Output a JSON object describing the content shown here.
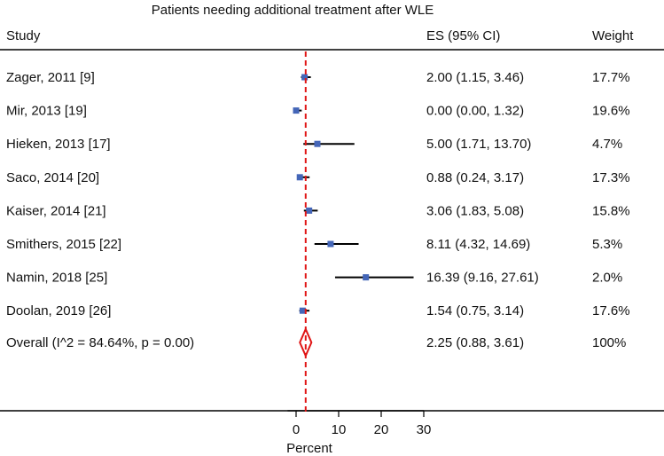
{
  "chart_data": {
    "type": "forest",
    "title": "Patients needing additional treatment after WLE",
    "headers": {
      "study": "Study",
      "es": "ES (95% CI)",
      "weight": "Weight"
    },
    "xlabel": "Percent",
    "xticks": [
      0,
      10,
      20,
      30
    ],
    "xlim": [
      -2,
      30
    ],
    "reference_line": 2.25,
    "studies": [
      {
        "label": "Zager, 2011 [9]",
        "es": 2.0,
        "lo": 1.15,
        "hi": 3.46,
        "es_text": "2.00 (1.15, 3.46)",
        "weight": "17.7%"
      },
      {
        "label": "Mir, 2013 [19]",
        "es": 0.0,
        "lo": 0.0,
        "hi": 1.32,
        "es_text": "0.00 (0.00, 1.32)",
        "weight": "19.6%"
      },
      {
        "label": "Hieken, 2013 [17]",
        "es": 5.0,
        "lo": 1.71,
        "hi": 13.7,
        "es_text": "5.00 (1.71, 13.70)",
        "weight": "4.7%"
      },
      {
        "label": "Saco, 2014 [20]",
        "es": 0.88,
        "lo": 0.24,
        "hi": 3.17,
        "es_text": "0.88 (0.24, 3.17)",
        "weight": "17.3%"
      },
      {
        "label": "Kaiser,  2014 [21]",
        "es": 3.06,
        "lo": 1.83,
        "hi": 5.08,
        "es_text": "3.06 (1.83, 5.08)",
        "weight": "15.8%"
      },
      {
        "label": "Smithers,  2015 [22]",
        "es": 8.11,
        "lo": 4.32,
        "hi": 14.69,
        "es_text": "8.11 (4.32, 14.69)",
        "weight": "5.3%"
      },
      {
        "label": "Namin,  2018 [25]",
        "es": 16.39,
        "lo": 9.16,
        "hi": 27.61,
        "es_text": "16.39 (9.16, 27.61)",
        "weight": "2.0%"
      },
      {
        "label": "Doolan,  2019 [26]",
        "es": 1.54,
        "lo": 0.75,
        "hi": 3.14,
        "es_text": "1.54 (0.75, 3.14)",
        "weight": "17.6%"
      }
    ],
    "overall": {
      "label": "Overall (I^2 = 84.64%, p = 0.00)",
      "es": 2.25,
      "lo": 0.88,
      "hi": 3.61,
      "es_text": "2.25 (0.88, 3.61)",
      "weight": "100%"
    },
    "colors": {
      "marker": "#4466b8",
      "ci": "#000000",
      "reference": "#e01515",
      "diamond": "#e01515"
    }
  }
}
